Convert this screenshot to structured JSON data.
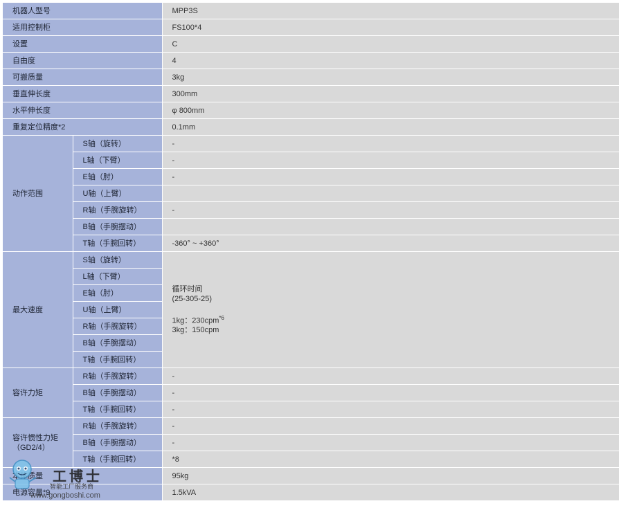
{
  "rows": {
    "model": {
      "label": "机器人型号",
      "value": "MPP3S"
    },
    "controller": {
      "label": "适用控制柜",
      "value": "FS100*4"
    },
    "setting": {
      "label": "设置",
      "value": "C"
    },
    "dof": {
      "label": "自由度",
      "value": "4"
    },
    "payload": {
      "label": "可搬质量",
      "value": "3kg"
    },
    "vertical_reach": {
      "label": "垂直伸长度",
      "value": "300mm"
    },
    "horizontal_reach": {
      "label": "水平伸长度",
      "value": "φ 800mm"
    },
    "repeatability": {
      "label": "重复定位精度*2",
      "value": "0.1mm"
    }
  },
  "motion_range": {
    "label": "动作范围",
    "items": [
      {
        "axis": "S轴（旋转）",
        "value": "-"
      },
      {
        "axis": "L轴（下臂）",
        "value": "-"
      },
      {
        "axis": "E轴（肘）",
        "value": "-"
      },
      {
        "axis": "U轴（上臂）",
        "value": ""
      },
      {
        "axis": "R轴（手腕旋转）",
        "value": "-"
      },
      {
        "axis": "B轴（手腕摆动）",
        "value": ""
      },
      {
        "axis": "T轴（手腕回转）",
        "value": "-360° ~ +360°"
      }
    ]
  },
  "max_speed": {
    "label": "最大速度",
    "axes": [
      "S轴（旋转）",
      "L轴（下臂）",
      "E轴（肘）",
      "U轴（上臂）",
      "R轴（手腕旋转）",
      "B轴（手腕摆动）",
      "T轴（手腕回转）"
    ],
    "value_line1": "循环时间",
    "value_line2": "(25-305-25)",
    "value_line3": "1kg：230cpm",
    "value_line3_sup": "*6",
    "value_line4": "3kg：150cpm"
  },
  "allowable_moment": {
    "label": "容许力矩",
    "items": [
      {
        "axis": "R轴（手腕旋转）",
        "value": "-"
      },
      {
        "axis": "B轴（手腕摆动）",
        "value": "-"
      },
      {
        "axis": "T轴（手腕回转）",
        "value": "-"
      }
    ]
  },
  "allowable_inertia": {
    "label_line1": "容许惯性力矩",
    "label_line2": "（GD2/4）",
    "items": [
      {
        "axis": "R轴（手腕旋转）",
        "value": "-"
      },
      {
        "axis": "B轴（手腕摆动）",
        "value": "-"
      },
      {
        "axis": "T轴（手腕回转）",
        "value": "*8"
      }
    ]
  },
  "mass": {
    "label": "本体质量",
    "value": "95kg"
  },
  "power": {
    "label": "电源容量*9",
    "value": "1.5kVA"
  },
  "watermark": {
    "title": "工博士",
    "subtitle": "智能工厂服务商",
    "url": "www.gongboshi.com"
  }
}
